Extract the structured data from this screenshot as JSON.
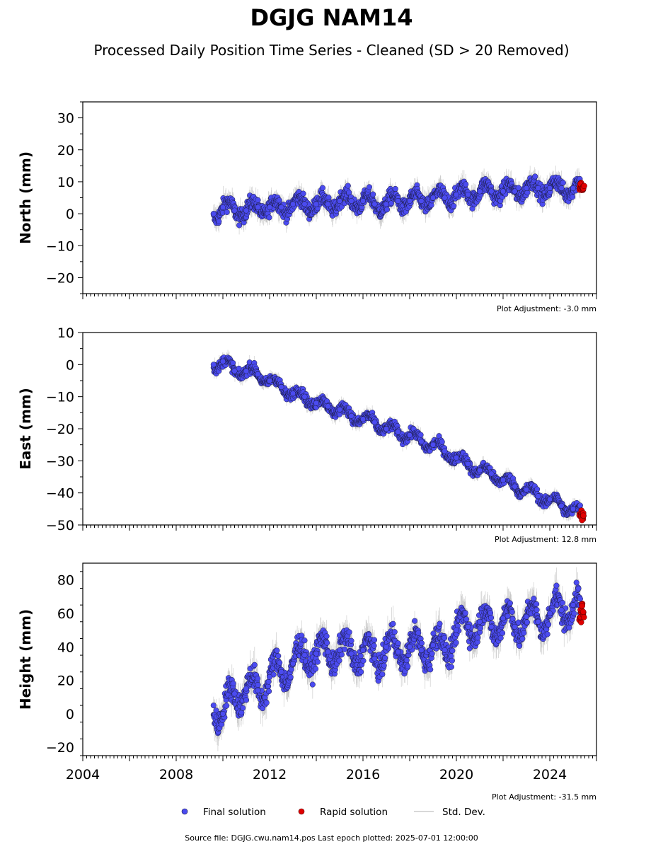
{
  "header": {
    "title": "DGJG NAM14",
    "subtitle": "Processed Daily Position Time Series - Cleaned (SD > 20 Removed)"
  },
  "legend": {
    "final_label": "Final solution",
    "rapid_label": "Rapid solution",
    "sd_label": "Std. Dev."
  },
  "footer": {
    "source": "Source file: DGJG.cwu.nam14.pos  Last epoch plotted: 2025-07-01 12:00:00"
  },
  "colors": {
    "final": "#4b4bf0",
    "rapid": "#e00000",
    "std_dev": "#b0b0b0",
    "marker_edge": "#1a1a40"
  },
  "chart_data": [
    {
      "type": "scatter",
      "ylabel": "North (mm)",
      "adjustment": "Plot Adjustment: -3.0 mm",
      "xlim": [
        2004,
        2026
      ],
      "ylim": [
        -25,
        35
      ],
      "yticks": [
        -20,
        -10,
        0,
        10,
        20,
        30
      ],
      "xticks": [],
      "series": [
        {
          "name": "Final solution",
          "x": [
            2009.6,
            2010.0,
            2010.5,
            2011.0,
            2011.5,
            2012.0,
            2012.5,
            2013.0,
            2013.5,
            2014.0,
            2014.5,
            2015.0,
            2015.5,
            2016.0,
            2016.5,
            2017.0,
            2017.5,
            2018.0,
            2018.5,
            2019.0,
            2019.5,
            2020.0,
            2020.5,
            2021.0,
            2021.5,
            2022.0,
            2022.5,
            2023.0,
            2023.5,
            2024.0,
            2024.5,
            2025.0,
            2025.3
          ],
          "y": [
            0,
            2,
            1,
            1,
            2,
            2,
            2,
            3,
            3,
            3,
            3,
            4,
            4,
            4,
            3,
            3,
            4,
            4,
            4,
            5,
            5,
            6,
            6,
            7,
            7,
            7,
            7,
            8,
            8,
            8,
            8,
            8,
            8
          ]
        },
        {
          "name": "Rapid solution",
          "x": [
            2025.3,
            2025.35,
            2025.4,
            2025.45
          ],
          "y": [
            8,
            9,
            8,
            8
          ]
        }
      ]
    },
    {
      "type": "scatter",
      "ylabel": "East (mm)",
      "adjustment": "Plot Adjustment: 12.8 mm",
      "xlim": [
        2004,
        2026
      ],
      "ylim": [
        -50,
        10
      ],
      "yticks": [
        -50,
        -40,
        -30,
        -20,
        -10,
        0,
        10
      ],
      "xticks": [],
      "series": [
        {
          "name": "Final solution",
          "x": [
            2009.6,
            2010.0,
            2010.5,
            2011.0,
            2011.5,
            2012.0,
            2012.5,
            2013.0,
            2013.5,
            2014.0,
            2014.5,
            2015.0,
            2015.5,
            2016.0,
            2016.5,
            2017.0,
            2017.5,
            2018.0,
            2018.5,
            2019.0,
            2019.5,
            2020.0,
            2020.5,
            2021.0,
            2021.5,
            2022.0,
            2022.5,
            2023.0,
            2023.5,
            2024.0,
            2024.5,
            2025.0,
            2025.3
          ],
          "y": [
            0,
            1,
            -2,
            -2,
            -3,
            -5,
            -7,
            -9,
            -10,
            -12,
            -13,
            -14,
            -16,
            -17,
            -18,
            -20,
            -21,
            -22,
            -24,
            -25,
            -27,
            -29,
            -31,
            -33,
            -34,
            -36,
            -38,
            -39,
            -41,
            -42,
            -44,
            -45,
            -46
          ]
        },
        {
          "name": "Rapid solution",
          "x": [
            2025.3,
            2025.35,
            2025.4,
            2025.45
          ],
          "y": [
            -47,
            -46,
            -48,
            -47
          ]
        }
      ]
    },
    {
      "type": "scatter",
      "ylabel": "Height (mm)",
      "adjustment": "Plot Adjustment: -31.5 mm",
      "xlim": [
        2004,
        2026
      ],
      "ylim": [
        -25,
        90
      ],
      "yticks": [
        -20,
        0,
        20,
        40,
        60,
        80
      ],
      "xticks": [
        2004,
        2008,
        2012,
        2016,
        2020,
        2024
      ],
      "series": [
        {
          "name": "Final solution",
          "x": [
            2009.6,
            2010.0,
            2010.5,
            2011.0,
            2011.5,
            2012.0,
            2012.5,
            2013.0,
            2013.5,
            2014.0,
            2014.5,
            2015.0,
            2015.5,
            2016.0,
            2016.5,
            2017.0,
            2017.5,
            2018.0,
            2018.5,
            2019.0,
            2019.5,
            2020.0,
            2020.5,
            2021.0,
            2021.5,
            2022.0,
            2022.5,
            2023.0,
            2023.5,
            2024.0,
            2024.5,
            2025.0,
            2025.3
          ],
          "y": [
            5,
            0,
            12,
            15,
            14,
            22,
            25,
            30,
            35,
            36,
            37,
            38,
            36,
            38,
            33,
            40,
            37,
            40,
            38,
            41,
            38,
            50,
            52,
            55,
            52,
            57,
            52,
            58,
            55,
            60,
            62,
            65,
            60
          ]
        },
        {
          "name": "Rapid solution",
          "x": [
            2025.3,
            2025.35,
            2025.4,
            2025.45
          ],
          "y": [
            55,
            60,
            63,
            58
          ]
        }
      ]
    }
  ]
}
